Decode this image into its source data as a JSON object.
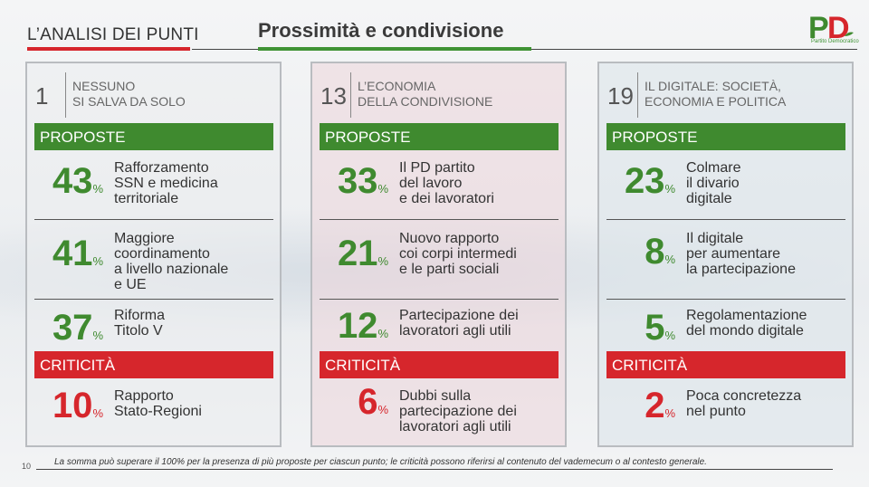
{
  "header": {
    "section": "L’ANALISI DEI PUNTI",
    "title": "Prossimità e condivisione",
    "logo_text": "PD",
    "logo_subtitle": "Partito Democratico",
    "accent_green": "#3f8a2f",
    "accent_red": "#d6262c"
  },
  "panels": [
    {
      "number": "1",
      "title": "NESSUNO\nSI SALVA DA SOLO",
      "proposals_label": "PROPOSTE",
      "proposals": [
        {
          "pct": "43",
          "text": "Rafforzamento\nSSN e medicina\nterritoriale"
        },
        {
          "pct": "41",
          "text": "Maggiore\ncoordinamento\na livello nazionale\ne UE"
        },
        {
          "pct": "37",
          "text": "Riforma\nTitolo V"
        }
      ],
      "criticism_label": "CRITICITÀ",
      "criticism": {
        "pct": "10",
        "text": "Rapporto\nStato-Regioni"
      }
    },
    {
      "number": "13",
      "title": "L’ECONOMIA\nDELLA CONDIVISIONE",
      "proposals_label": "PROPOSTE",
      "proposals": [
        {
          "pct": "33",
          "text": "Il PD partito\ndel lavoro\ne dei lavoratori"
        },
        {
          "pct": "21",
          "text": "Nuovo rapporto\ncoi corpi intermedi\ne le parti sociali"
        },
        {
          "pct": "12",
          "text": "Partecipazione dei\nlavoratori agli utili"
        }
      ],
      "criticism_label": "CRITICITÀ",
      "criticism": {
        "pct": "6",
        "text": "Dubbi sulla\npartecipazione dei\nlavoratori agli utili"
      }
    },
    {
      "number": "19",
      "title": "IL DIGITALE: SOCIETÀ,\nECONOMIA E POLITICA",
      "proposals_label": "PROPOSTE",
      "proposals": [
        {
          "pct": "23",
          "text": "Colmare\nil divario\ndigitale"
        },
        {
          "pct": "8",
          "text": "Il digitale\nper aumentare\nla partecipazione"
        },
        {
          "pct": "5",
          "text": "Regolamentazione\ndel mondo digitale"
        }
      ],
      "criticism_label": "CRITICITÀ",
      "criticism": {
        "pct": "2",
        "text": "Poca concretezza\nnel punto"
      }
    }
  ],
  "pct_symbol": "%",
  "footnote": "La somma può superare il 100% per la presenza di più proposte per ciascun punto; le criticità possono riferirsi al contenuto del vademecum o al contesto generale.",
  "page_number": "10"
}
